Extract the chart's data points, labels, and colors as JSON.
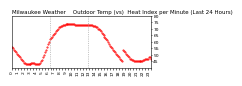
{
  "title": "Milwaukee Weather    Outdoor Temp (vs)  Heat Index per Minute (Last 24 Hours)",
  "line_color": "#ff0000",
  "bg_color": "#ffffff",
  "plot_bg": "#ffffff",
  "vline_color": "#999999",
  "vline_positions": [
    0.27,
    0.54
  ],
  "ylim": [
    40,
    80
  ],
  "yticks": [
    45,
    50,
    55,
    60,
    65,
    70,
    75,
    80
  ],
  "curve": [
    56,
    55,
    54,
    53,
    52,
    51,
    50,
    49,
    48,
    47,
    46,
    45,
    44,
    44,
    43,
    43,
    43,
    43,
    43,
    43,
    44,
    44,
    44,
    44,
    43,
    43,
    43,
    43,
    43,
    44,
    45,
    46,
    48,
    50,
    52,
    54,
    56,
    58,
    60,
    62,
    63,
    64,
    65,
    66,
    67,
    68,
    69,
    70,
    71,
    71,
    72,
    72,
    73,
    73,
    73,
    74,
    74,
    74,
    74,
    74,
    74,
    74,
    74,
    74,
    74,
    73,
    73,
    73,
    73,
    73,
    73,
    73,
    73,
    73,
    73,
    73,
    73,
    73,
    73,
    73,
    73,
    73,
    73,
    72,
    72,
    72,
    71,
    71,
    70,
    70,
    69,
    68,
    67,
    66,
    65,
    64,
    63,
    62,
    61,
    60,
    58,
    57,
    56,
    55,
    54,
    53,
    52,
    51,
    50,
    49,
    48,
    47,
    46,
    45,
    54,
    53,
    52,
    51,
    50,
    49,
    48,
    47,
    47,
    46,
    46,
    45,
    45,
    45,
    45,
    45,
    45,
    45,
    45,
    45,
    45,
    46,
    46,
    47,
    47,
    47,
    47,
    48,
    48,
    47
  ],
  "markersize": 0.9,
  "title_fontsize": 4.0,
  "tick_fontsize": 3.2,
  "ytick_fontsize": 3.2
}
